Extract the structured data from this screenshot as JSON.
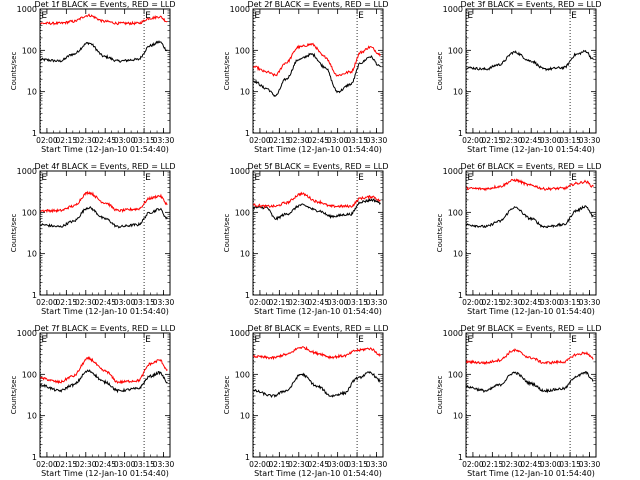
{
  "chart_data": [
    {
      "title": "Det 1f BLACK = Events, RED = LLD",
      "type": "line",
      "ylabel": "Counts/sec",
      "xlabel": "Start Time (12-Jan-10 01:54:40)",
      "x_ticks": [
        "02:00",
        "02:15",
        "02:30",
        "02:45",
        "03:00",
        "03:15",
        "03:30"
      ],
      "y_ticks": [
        "1",
        "10",
        "100",
        "1000"
      ],
      "y_scale": "log",
      "ylim": [
        1,
        1000
      ],
      "markers": [
        {
          "label": "E",
          "x": "01:55"
        },
        {
          "label": "E",
          "x": "03:15"
        }
      ],
      "series": [
        {
          "color": "#000000",
          "x": [
            "01:55",
            "02:10",
            "02:20",
            "02:32",
            "02:45",
            "02:55",
            "03:10",
            "03:20",
            "03:27",
            "03:33"
          ],
          "values": [
            60,
            55,
            80,
            150,
            70,
            55,
            60,
            130,
            160,
            100
          ]
        },
        {
          "color": "#ff0000",
          "x": [
            "01:55",
            "02:10",
            "02:20",
            "02:32",
            "02:45",
            "02:55",
            "03:10",
            "03:20",
            "03:27",
            "03:33"
          ],
          "values": [
            450,
            450,
            500,
            700,
            500,
            450,
            450,
            600,
            650,
            500
          ]
        }
      ]
    },
    {
      "title": "Det 2f BLACK = Events, RED = LLD",
      "type": "line",
      "ylabel": "Counts/sec",
      "xlabel": "Start Time (12-Jan-10 01:54:40)",
      "x_ticks": [
        "02:00",
        "02:15",
        "02:30",
        "02:45",
        "03:00",
        "03:15",
        "03:30"
      ],
      "y_ticks": [
        "1",
        "10",
        "100",
        "1000"
      ],
      "y_scale": "log",
      "ylim": [
        1,
        1000
      ],
      "markers": [
        {
          "label": "E",
          "x": "01:55"
        },
        {
          "label": "E",
          "x": "03:15"
        }
      ],
      "series": [
        {
          "color": "#000000",
          "x": [
            "01:55",
            "02:05",
            "02:12",
            "02:20",
            "02:30",
            "02:40",
            "02:50",
            "03:00",
            "03:10",
            "03:18",
            "03:25",
            "03:33"
          ],
          "values": [
            18,
            12,
            8,
            20,
            60,
            80,
            40,
            10,
            15,
            50,
            70,
            40
          ]
        },
        {
          "color": "#ff0000",
          "x": [
            "01:55",
            "02:05",
            "02:12",
            "02:20",
            "02:30",
            "02:40",
            "02:50",
            "03:00",
            "03:10",
            "03:18",
            "03:25",
            "03:33"
          ],
          "values": [
            40,
            30,
            25,
            50,
            120,
            140,
            70,
            25,
            30,
            90,
            120,
            80
          ]
        }
      ]
    },
    {
      "title": "Det 3f BLACK = Events, RED = LLD",
      "type": "line",
      "ylabel": "Counts/sec",
      "xlabel": "Start Time (12-Jan-10 01:54:40)",
      "x_ticks": [
        "02:00",
        "02:15",
        "02:30",
        "02:45",
        "03:00",
        "03:15",
        "03:30"
      ],
      "y_ticks": [
        "1",
        "10",
        "100",
        "1000"
      ],
      "y_scale": "log",
      "ylim": [
        1,
        1000
      ],
      "markers": [
        {
          "label": "E",
          "x": "01:55"
        },
        {
          "label": "E",
          "x": "03:15"
        }
      ],
      "series": [
        {
          "color": "#000000",
          "x": [
            "01:55",
            "02:10",
            "02:20",
            "02:32",
            "02:45",
            "02:55",
            "03:10",
            "03:20",
            "03:27",
            "03:33"
          ],
          "values": [
            38,
            35,
            45,
            90,
            55,
            35,
            38,
            80,
            95,
            60
          ]
        }
      ]
    },
    {
      "title": "Det 4f BLACK = Events, RED = LLD",
      "type": "line",
      "ylabel": "Counts/sec",
      "xlabel": "Start Time (12-Jan-10 01:54:40)",
      "x_ticks": [
        "02:00",
        "02:15",
        "02:30",
        "02:45",
        "03:00",
        "03:15",
        "03:30"
      ],
      "y_ticks": [
        "1",
        "10",
        "100",
        "1000"
      ],
      "y_scale": "log",
      "ylim": [
        1,
        1000
      ],
      "markers": [
        {
          "label": "E",
          "x": "01:55"
        },
        {
          "label": "E",
          "x": "03:15"
        }
      ],
      "series": [
        {
          "color": "#000000",
          "x": [
            "01:55",
            "02:10",
            "02:20",
            "02:32",
            "02:45",
            "02:55",
            "03:10",
            "03:20",
            "03:27",
            "03:33"
          ],
          "values": [
            50,
            45,
            60,
            130,
            70,
            45,
            50,
            100,
            120,
            70
          ]
        },
        {
          "color": "#ff0000",
          "x": [
            "01:55",
            "02:10",
            "02:20",
            "02:32",
            "02:45",
            "02:55",
            "03:10",
            "03:20",
            "03:27",
            "03:33"
          ],
          "values": [
            110,
            110,
            140,
            300,
            170,
            110,
            120,
            220,
            250,
            160
          ]
        }
      ]
    },
    {
      "title": "Det 5f BLACK = Events, RED = LLD",
      "type": "line",
      "ylabel": "Counts/sec",
      "xlabel": "Start Time (12-Jan-10 01:54:40)",
      "x_ticks": [
        "02:00",
        "02:15",
        "02:30",
        "02:45",
        "03:00",
        "03:15",
        "03:30"
      ],
      "y_ticks": [
        "1",
        "10",
        "100",
        "1000"
      ],
      "y_scale": "log",
      "ylim": [
        1,
        1000
      ],
      "markers": [
        {
          "label": "E",
          "x": "01:55"
        },
        {
          "label": "E",
          "x": "03:15"
        }
      ],
      "series": [
        {
          "color": "#000000",
          "x": [
            "01:55",
            "02:05",
            "02:12",
            "02:20",
            "02:32",
            "02:45",
            "02:55",
            "03:10",
            "03:18",
            "03:27",
            "03:33"
          ],
          "values": [
            130,
            130,
            70,
            90,
            150,
            110,
            80,
            90,
            180,
            200,
            170
          ]
        },
        {
          "color": "#ff0000",
          "x": [
            "01:55",
            "02:05",
            "02:12",
            "02:20",
            "02:32",
            "02:45",
            "02:55",
            "03:10",
            "03:18",
            "03:27",
            "03:33"
          ],
          "values": [
            150,
            140,
            140,
            170,
            280,
            180,
            140,
            140,
            220,
            240,
            190
          ]
        }
      ]
    },
    {
      "title": "Det 6f BLACK = Events, RED = LLD",
      "type": "line",
      "ylabel": "Counts/sec",
      "xlabel": "Start Time (12-Jan-10 01:54:40)",
      "x_ticks": [
        "02:00",
        "02:15",
        "02:30",
        "02:45",
        "03:00",
        "03:15",
        "03:30"
      ],
      "y_ticks": [
        "1",
        "10",
        "100",
        "1000"
      ],
      "y_scale": "log",
      "ylim": [
        1,
        1000
      ],
      "markers": [
        {
          "label": "E",
          "x": "01:55"
        },
        {
          "label": "E",
          "x": "03:15"
        }
      ],
      "series": [
        {
          "color": "#000000",
          "x": [
            "01:55",
            "02:10",
            "02:20",
            "02:32",
            "02:45",
            "02:55",
            "03:10",
            "03:20",
            "03:27",
            "03:33"
          ],
          "values": [
            50,
            45,
            60,
            130,
            70,
            45,
            50,
            110,
            140,
            80
          ]
        },
        {
          "color": "#ff0000",
          "x": [
            "01:55",
            "02:10",
            "02:20",
            "02:32",
            "02:45",
            "02:55",
            "03:10",
            "03:20",
            "03:27",
            "03:33"
          ],
          "values": [
            380,
            370,
            420,
            600,
            450,
            370,
            380,
            500,
            550,
            420
          ]
        }
      ]
    },
    {
      "title": "Det 7f BLACK = Events, RED = LLD",
      "type": "line",
      "ylabel": "Counts/sec",
      "xlabel": "Start Time (12-Jan-10 01:54:40)",
      "x_ticks": [
        "02:00",
        "02:15",
        "02:30",
        "02:45",
        "03:00",
        "03:15",
        "03:30"
      ],
      "y_ticks": [
        "1",
        "10",
        "100",
        "1000"
      ],
      "y_scale": "log",
      "ylim": [
        1,
        1000
      ],
      "markers": [
        {
          "label": "E",
          "x": "01:55"
        },
        {
          "label": "E",
          "x": "03:15"
        }
      ],
      "series": [
        {
          "color": "#000000",
          "x": [
            "01:55",
            "02:10",
            "02:20",
            "02:32",
            "02:45",
            "02:55",
            "03:10",
            "03:20",
            "03:27",
            "03:33"
          ],
          "values": [
            55,
            40,
            55,
            120,
            65,
            40,
            45,
            90,
            110,
            65
          ]
        },
        {
          "color": "#ff0000",
          "x": [
            "01:55",
            "02:10",
            "02:20",
            "02:32",
            "02:45",
            "02:55",
            "03:10",
            "03:20",
            "03:27",
            "03:33"
          ],
          "values": [
            80,
            65,
            90,
            240,
            120,
            65,
            70,
            180,
            220,
            130
          ]
        }
      ]
    },
    {
      "title": "Det 8f BLACK = Events, RED = LLD",
      "type": "line",
      "ylabel": "Counts/sec",
      "xlabel": "Start Time (12-Jan-10 01:54:40)",
      "x_ticks": [
        "02:00",
        "02:15",
        "02:30",
        "02:45",
        "03:00",
        "03:15",
        "03:30"
      ],
      "y_ticks": [
        "1",
        "10",
        "100",
        "1000"
      ],
      "y_scale": "log",
      "ylim": [
        1,
        1000
      ],
      "markers": [
        {
          "label": "E",
          "x": "01:55"
        },
        {
          "label": "E",
          "x": "03:15"
        }
      ],
      "series": [
        {
          "color": "#000000",
          "x": [
            "01:55",
            "02:10",
            "02:20",
            "02:32",
            "02:45",
            "02:55",
            "03:05",
            "03:15",
            "03:25",
            "03:33"
          ],
          "values": [
            40,
            30,
            40,
            100,
            50,
            30,
            35,
            80,
            110,
            70
          ]
        },
        {
          "color": "#ff0000",
          "x": [
            "01:55",
            "02:10",
            "02:20",
            "02:32",
            "02:45",
            "02:55",
            "03:05",
            "03:15",
            "03:25",
            "03:33"
          ],
          "values": [
            270,
            250,
            300,
            450,
            320,
            260,
            280,
            380,
            420,
            300
          ]
        }
      ]
    },
    {
      "title": "Det 9f BLACK = Events, RED = LLD",
      "type": "line",
      "ylabel": "Counts/sec",
      "xlabel": "Start Time (12-Jan-10 01:54:40)",
      "x_ticks": [
        "02:00",
        "02:15",
        "02:30",
        "02:45",
        "03:00",
        "03:15",
        "03:30"
      ],
      "y_ticks": [
        "1",
        "10",
        "100",
        "1000"
      ],
      "y_scale": "log",
      "ylim": [
        1,
        1000
      ],
      "markers": [
        {
          "label": "E",
          "x": "01:55"
        },
        {
          "label": "E",
          "x": "03:15"
        }
      ],
      "series": [
        {
          "color": "#000000",
          "x": [
            "01:55",
            "02:10",
            "02:20",
            "02:32",
            "02:45",
            "02:55",
            "03:10",
            "03:20",
            "03:27",
            "03:33"
          ],
          "values": [
            50,
            40,
            55,
            110,
            60,
            40,
            45,
            90,
            110,
            70
          ]
        },
        {
          "color": "#ff0000",
          "x": [
            "01:55",
            "02:10",
            "02:20",
            "02:32",
            "02:45",
            "02:55",
            "03:10",
            "03:20",
            "03:27",
            "03:33"
          ],
          "values": [
            200,
            190,
            220,
            380,
            250,
            190,
            200,
            300,
            330,
            240
          ]
        }
      ]
    }
  ]
}
